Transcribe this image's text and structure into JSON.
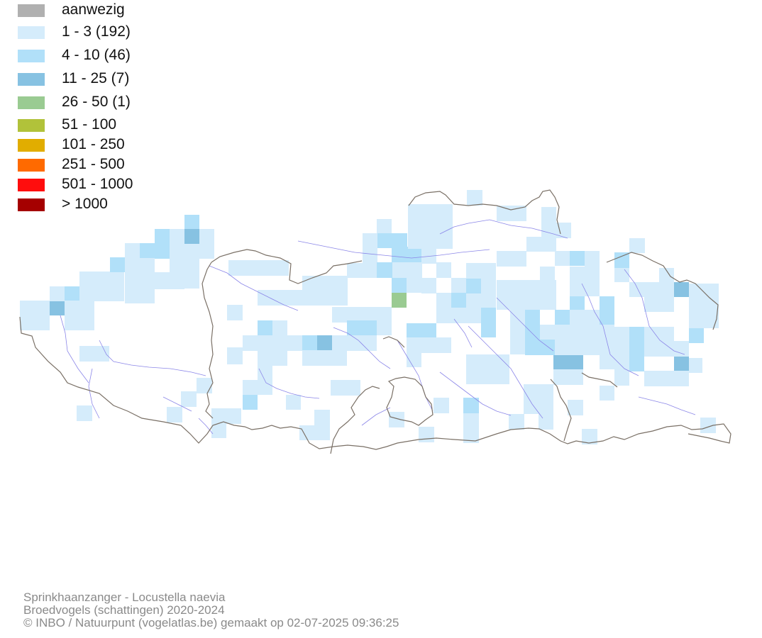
{
  "legend": {
    "items": [
      {
        "label": "aanwezig",
        "color": "#b0b0b0"
      },
      {
        "label": "1 - 3 (192)",
        "color": "#d5ecfb"
      },
      {
        "label": "4 - 10 (46)",
        "color": "#b1e0f9"
      },
      {
        "label": "11 - 25 (7)",
        "color": "#87c2e2"
      },
      {
        "label": "26 - 50 (1)",
        "color": "#9acb92"
      },
      {
        "label": "51 - 100",
        "color": "#b1c23a"
      },
      {
        "label": "101 - 250",
        "color": "#e1ad00"
      },
      {
        "label": "251 - 500",
        "color": "#ff6a00"
      },
      {
        "label": "501 - 1000",
        "color": "#ff0d0d"
      },
      {
        "label": "> 1000",
        "color": "#a50000"
      }
    ]
  },
  "map": {
    "border_color": "#7a7066",
    "river_color": "#8b86e8"
  },
  "footer": {
    "line1": "Sprinkhaanzanger - Locustella naevia",
    "line2": "Broedvogels (schattingen) 2020-2024",
    "line3": "© INBO / Natuurpunt (vogelatlas.be) gemaakt op 02-07-2025 09:36:25"
  }
}
